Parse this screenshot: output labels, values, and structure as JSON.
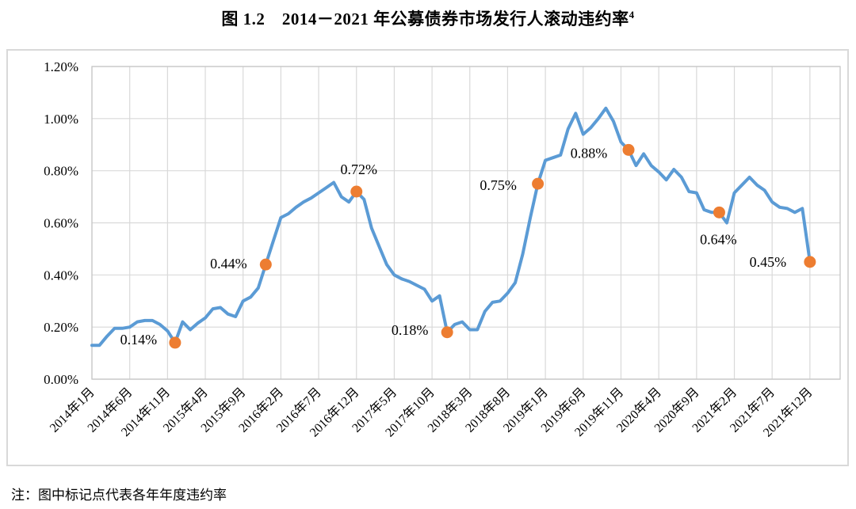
{
  "figure": {
    "title_text": "图 1.2　2014－2021 年公募债券市场发行人滚动违约率",
    "title_superscript": "4",
    "note": "注：图中标记点代表各年年度违约率"
  },
  "chart_data": {
    "type": "line",
    "title": "2014－2021 年公募债券市场发行人滚动违约率",
    "x_tick_labels": [
      "2014年1月",
      "2014年6月",
      "2014年11月",
      "2015年4月",
      "2015年9月",
      "2016年2月",
      "2016年7月",
      "2016年12月",
      "2017年5月",
      "2017年10月",
      "2018年3月",
      "2018年8月",
      "2019年1月",
      "2019年6月",
      "2019年11月",
      "2020年4月",
      "2020年9月",
      "2021年2月",
      "2021年7月",
      "2021年12月"
    ],
    "y_tick_labels": [
      "0.00%",
      "0.20%",
      "0.40%",
      "0.60%",
      "0.80%",
      "1.00%",
      "1.20%"
    ],
    "ylim": [
      0,
      1.2
    ],
    "y_unit": "%",
    "x_months_total": 96,
    "x_tick_interval_months": 5,
    "grid": true,
    "legend": "none",
    "line_color": "#5B9BD5",
    "marker_color": "#ED7D31",
    "grid_color": "#D9D9D9",
    "border_color": "#D9D9D9",
    "series": [
      {
        "name": "滚动违约率",
        "values": [
          0.13,
          0.13,
          0.165,
          0.195,
          0.195,
          0.2,
          0.22,
          0.225,
          0.225,
          0.21,
          0.185,
          0.14,
          0.22,
          0.19,
          0.215,
          0.235,
          0.27,
          0.275,
          0.25,
          0.24,
          0.3,
          0.315,
          0.35,
          0.44,
          0.53,
          0.62,
          0.635,
          0.66,
          0.68,
          0.695,
          0.715,
          0.735,
          0.755,
          0.7,
          0.68,
          0.72,
          0.69,
          0.58,
          0.51,
          0.44,
          0.4,
          0.385,
          0.375,
          0.36,
          0.345,
          0.3,
          0.32,
          0.18,
          0.21,
          0.22,
          0.19,
          0.19,
          0.26,
          0.295,
          0.3,
          0.33,
          0.37,
          0.48,
          0.62,
          0.75,
          0.84,
          0.85,
          0.86,
          0.96,
          1.02,
          0.94,
          0.965,
          1.0,
          1.04,
          0.99,
          0.91,
          0.88,
          0.82,
          0.865,
          0.82,
          0.795,
          0.765,
          0.805,
          0.775,
          0.72,
          0.715,
          0.65,
          0.64,
          0.64,
          0.6,
          0.715,
          0.745,
          0.775,
          0.745,
          0.725,
          0.68,
          0.66,
          0.655,
          0.64,
          0.655,
          0.45
        ]
      }
    ],
    "annual_markers": [
      {
        "index": 11,
        "year": "2014",
        "label": "0.14%",
        "value": 0.14
      },
      {
        "index": 23,
        "year": "2015",
        "label": "0.44%",
        "value": 0.44
      },
      {
        "index": 35,
        "year": "2016",
        "label": "0.72%",
        "value": 0.72
      },
      {
        "index": 47,
        "year": "2017",
        "label": "0.18%",
        "value": 0.18
      },
      {
        "index": 59,
        "year": "2018",
        "label": "0.75%",
        "value": 0.75
      },
      {
        "index": 71,
        "year": "2019",
        "label": "0.88%",
        "value": 0.88
      },
      {
        "index": 83,
        "year": "2020",
        "label": "0.64%",
        "value": 0.64
      },
      {
        "index": 95,
        "year": "2021",
        "label": "0.45%",
        "value": 0.45
      }
    ]
  }
}
